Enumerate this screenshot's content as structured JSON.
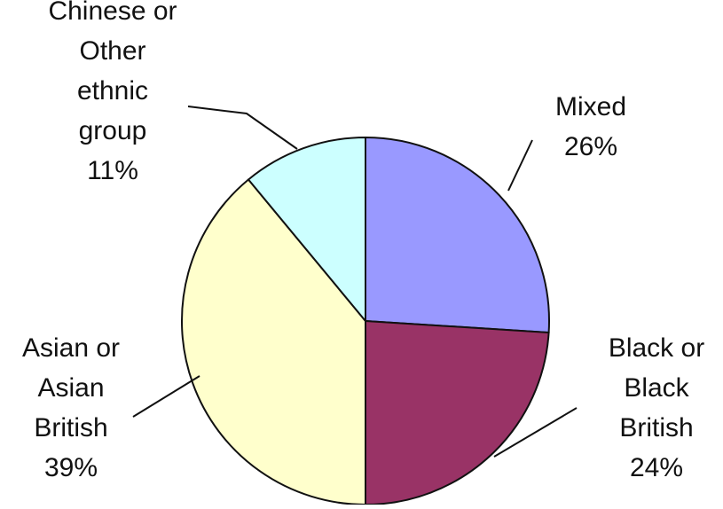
{
  "chart_data": {
    "type": "pie",
    "title": "",
    "start_angle_deg": 0,
    "direction": "clockwise",
    "slices": [
      {
        "name": "Mixed",
        "label_lines": [
          "Mixed",
          "26%"
        ],
        "value": 26,
        "color": "#9999ff"
      },
      {
        "name": "Black or Black British",
        "label_lines": [
          "Black or",
          "Black",
          "British",
          "24%"
        ],
        "value": 24,
        "color": "#993366"
      },
      {
        "name": "Asian or Asian British",
        "label_lines": [
          "Asian or",
          "Asian",
          "British",
          "39%"
        ],
        "value": 39,
        "color": "#ffffcc"
      },
      {
        "name": "Chinese or Other ethnic group",
        "label_lines": [
          "Chinese or",
          "Other",
          "ethnic",
          "group",
          "11%"
        ],
        "value": 11,
        "color": "#ccffff"
      }
    ],
    "legend": "none",
    "data_labels": "outside-with-leader-lines"
  }
}
